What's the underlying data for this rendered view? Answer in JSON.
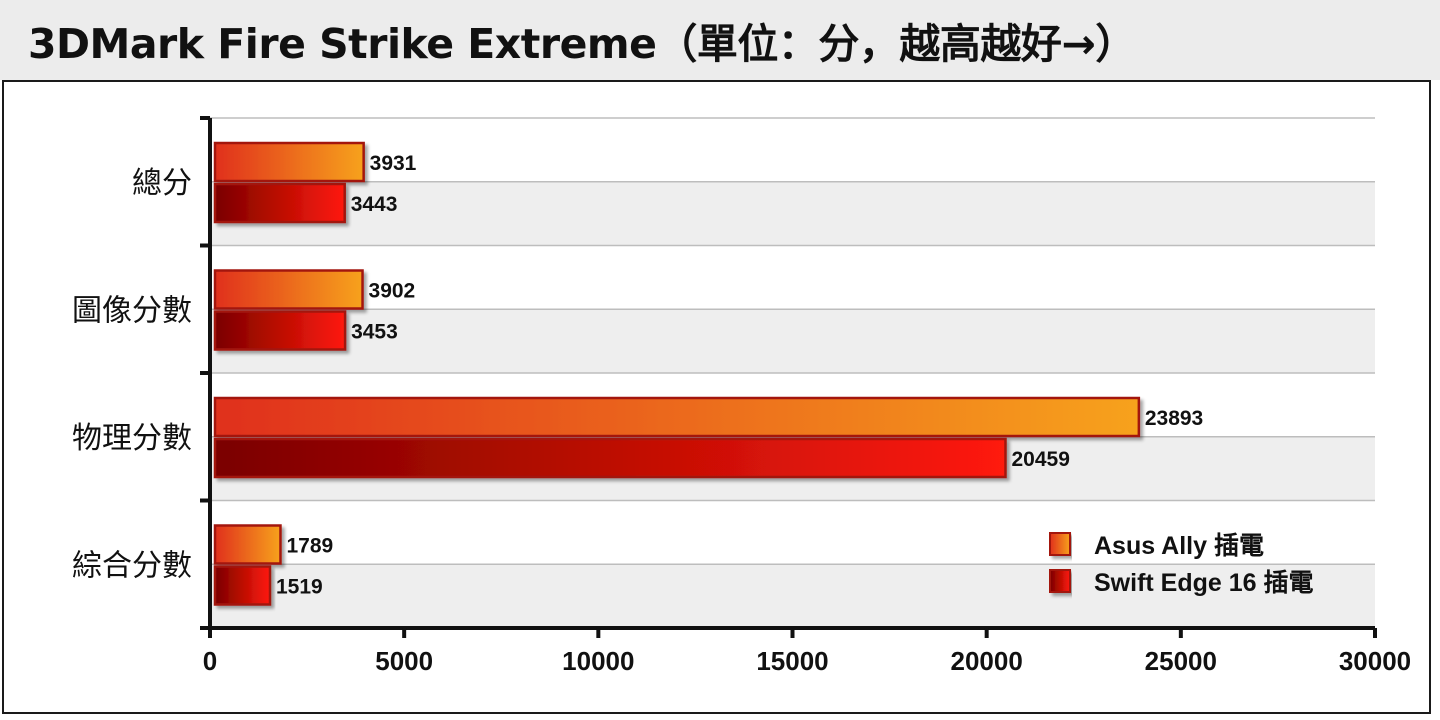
{
  "chart_data": {
    "type": "bar",
    "orientation": "horizontal",
    "title": "3DMark Fire Strike Extreme（單位：分，越高越好→）",
    "categories": [
      "總分",
      "圖像分數",
      "物理分數",
      "綜合分數"
    ],
    "series": [
      {
        "name": "Asus Ally 插電",
        "values": [
          3931,
          3902,
          23893,
          1789
        ]
      },
      {
        "name": "Swift Edge 16 插電",
        "values": [
          3443,
          3453,
          20459,
          1519
        ]
      }
    ],
    "xlim": [
      0,
      30000
    ],
    "xticks": [
      "0",
      "5000",
      "10000",
      "15000",
      "20000",
      "25000",
      "30000"
    ],
    "grid": true,
    "legend_position": "bottom-right",
    "colors": {
      "series1_start": "#e0301a",
      "series1_end": "#f7a21c",
      "series2_start": "#7a0000",
      "series2_end": "#ff1a0a",
      "band": "#eeeeee",
      "bar_border": "#a3160e"
    }
  }
}
